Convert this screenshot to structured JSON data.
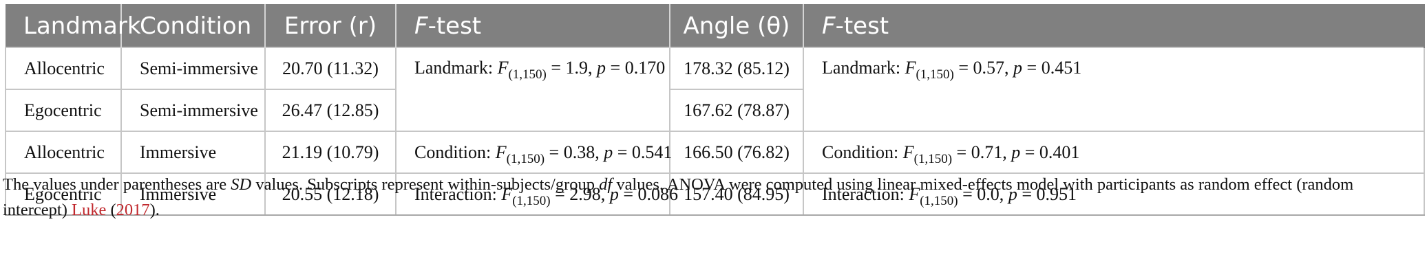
{
  "table": {
    "headers": {
      "landmark": "Landmark",
      "condition": "Condition",
      "error": "Error (r)",
      "ftest_f": "F",
      "ftest_rest": "-test",
      "angle": "Angle (θ)"
    },
    "rows": [
      {
        "landmark": "Allocentric",
        "condition": "Semi-immersive",
        "error": "20.70 (11.32)",
        "angle": "178.32 (85.12)"
      },
      {
        "landmark": "Egocentric",
        "condition": "Semi-immersive",
        "error": "26.47 (12.85)",
        "angle": "167.62 (78.87)"
      },
      {
        "landmark": "Allocentric",
        "condition": "Immersive",
        "error": "21.19 (10.79)",
        "angle": "166.50 (76.82)"
      },
      {
        "landmark": "Egocentric",
        "condition": "Immersive",
        "error": "20.55 (12.18)",
        "angle": "157.40 (84.95)"
      }
    ],
    "error_tests": {
      "landmark": {
        "label": "Landmark: ",
        "sub": "(1,150)",
        "f_value": " = 1.9, ",
        "p_value": " = 0.170"
      },
      "condition": {
        "label": "Condition: ",
        "sub": "(1,150)",
        "f_value": " = 0.38, ",
        "p_value": " = 0.541"
      },
      "interaction": {
        "label": "Interaction: ",
        "sub": "(1,150)",
        "f_value": " = 2.98, ",
        "p_value": " = 0.086"
      }
    },
    "angle_tests": {
      "landmark": {
        "label": "Landmark: ",
        "sub": "(1,150)",
        "f_value": " = 0.57, ",
        "p_value": " = 0.451"
      },
      "condition": {
        "label": "Condition: ",
        "sub": "(1,150)",
        "f_value": " = 0.71, ",
        "p_value": " = 0.401"
      },
      "interaction": {
        "label": "Interaction: ",
        "sub": "(1,150)",
        "f_value": " = 0.0, ",
        "p_value": " = 0.951"
      }
    },
    "symbols": {
      "f": "F",
      "p": "p"
    }
  },
  "note": {
    "part1": "The values under parentheses are ",
    "sd": "SD",
    "part2": " values. Subscripts represent within-subjects/group ",
    "df": "df",
    "part3": " values. ANOVA were computed using linear mixed-effects model with participants as random effect (random intercept) ",
    "ref_author": "Luke",
    "ref_open": " (",
    "ref_year": "2017",
    "ref_close": ")."
  }
}
